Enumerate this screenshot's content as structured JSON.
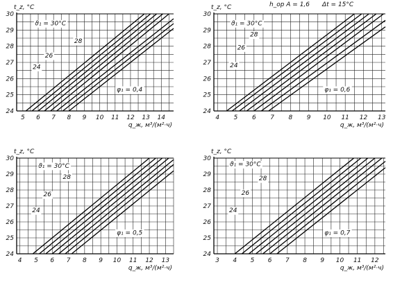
{
  "header": {
    "param_left": "h_op A = 1,6",
    "param_right": "Δt = 15°C"
  },
  "chart_data": [
    {
      "type": "line",
      "ylabel": "t_z, °C",
      "xlabel": "q_ж, м³/(м²·ч)",
      "xlim": [
        4.6,
        14.8
      ],
      "ylim": [
        24,
        30
      ],
      "xticks": [
        "5",
        "6",
        "7",
        "8",
        "9",
        "10",
        "11",
        "12",
        "13",
        "14"
      ],
      "yticks": [
        "24",
        "25",
        "26",
        "27",
        "28",
        "29",
        "30"
      ],
      "phi_label": "φ₁ = 0,4",
      "grid": true,
      "series": [
        {
          "name": "ϑ₁ = 30°C",
          "x": [
            5.2,
            12.9
          ],
          "y": [
            24,
            30
          ]
        },
        {
          "x": [
            5.6,
            13.3
          ],
          "y": [
            24,
            30
          ]
        },
        {
          "name": "28",
          "x": [
            6.0,
            13.7
          ],
          "y": [
            24,
            30
          ]
        },
        {
          "x": [
            6.4,
            14.1
          ],
          "y": [
            24,
            30
          ]
        },
        {
          "name": "26",
          "x": [
            6.8,
            14.5
          ],
          "y": [
            24,
            30
          ]
        },
        {
          "x": [
            7.2,
            14.8
          ],
          "y": [
            24,
            29.7
          ]
        },
        {
          "name": "24",
          "x": [
            7.6,
            14.8
          ],
          "y": [
            24,
            29.4
          ]
        },
        {
          "x": [
            8.0,
            14.8
          ],
          "y": [
            24,
            29.1
          ]
        }
      ],
      "labels": [
        {
          "text": "ϑ₁ = 30°C",
          "x": 6.8,
          "y": 29.3
        },
        {
          "text": "28",
          "x": 8.6,
          "y": 28.2
        },
        {
          "text": "26",
          "x": 6.7,
          "y": 27.3
        },
        {
          "text": "24",
          "x": 5.9,
          "y": 26.6
        }
      ]
    },
    {
      "type": "line",
      "ylabel": "t_z, °C",
      "xlabel": "q_ж, м³/(м²·ч)",
      "xlim": [
        3.8,
        13.2
      ],
      "ylim": [
        24,
        30
      ],
      "xticks": [
        "4",
        "5",
        "6",
        "7",
        "8",
        "9",
        "10",
        "11",
        "12",
        "13"
      ],
      "yticks": [
        "24",
        "25",
        "26",
        "27",
        "28",
        "29",
        "30"
      ],
      "phi_label": "φ₁ = 0,6",
      "grid": true,
      "series": [
        {
          "name": "ϑ₁ = 30°C",
          "x": [
            4.5,
            11.5
          ],
          "y": [
            24,
            30
          ]
        },
        {
          "x": [
            4.8,
            11.9
          ],
          "y": [
            24,
            30
          ]
        },
        {
          "name": "28",
          "x": [
            5.2,
            12.3
          ],
          "y": [
            24,
            30
          ]
        },
        {
          "x": [
            5.6,
            12.7
          ],
          "y": [
            24,
            30
          ]
        },
        {
          "name": "26",
          "x": [
            6.0,
            13.1
          ],
          "y": [
            24,
            30
          ]
        },
        {
          "x": [
            6.4,
            13.2
          ],
          "y": [
            24,
            29.6
          ]
        },
        {
          "name": "24",
          "x": [
            6.8,
            13.2
          ],
          "y": [
            24,
            29.2
          ]
        }
      ],
      "labels": [
        {
          "text": "ϑ₁ = 30°C",
          "x": 5.6,
          "y": 29.3
        },
        {
          "text": "28",
          "x": 6.0,
          "y": 28.6
        },
        {
          "text": "26",
          "x": 5.3,
          "y": 27.8
        },
        {
          "text": "24",
          "x": 4.9,
          "y": 26.7
        }
      ]
    },
    {
      "type": "line",
      "ylabel": "t_z, °C",
      "xlabel": "q_ж, м³/(м²·ч)",
      "xlim": [
        3.8,
        13.5
      ],
      "ylim": [
        24,
        30
      ],
      "xticks": [
        "4",
        "5",
        "6",
        "7",
        "8",
        "9",
        "10",
        "11",
        "12",
        "13"
      ],
      "yticks": [
        "24",
        "25",
        "26",
        "27",
        "28",
        "29",
        "30"
      ],
      "phi_label": "φ₁ = 0,5",
      "grid": true,
      "series": [
        {
          "name": "ϑ₁ = 30°C",
          "x": [
            4.8,
            12.0
          ],
          "y": [
            24,
            30
          ]
        },
        {
          "x": [
            5.2,
            12.4
          ],
          "y": [
            24,
            30
          ]
        },
        {
          "name": "28",
          "x": [
            5.6,
            12.8
          ],
          "y": [
            24,
            30
          ]
        },
        {
          "x": [
            6.0,
            13.2
          ],
          "y": [
            24,
            30
          ]
        },
        {
          "name": "26",
          "x": [
            6.4,
            13.5
          ],
          "y": [
            24,
            29.9
          ]
        },
        {
          "x": [
            6.8,
            13.5
          ],
          "y": [
            24,
            29.6
          ]
        },
        {
          "name": "24",
          "x": [
            7.2,
            13.5
          ],
          "y": [
            24,
            29.2
          ]
        }
      ],
      "labels": [
        {
          "text": "ϑ₁ = 30°C",
          "x": 6.1,
          "y": 29.4
        },
        {
          "text": "28",
          "x": 6.9,
          "y": 28.7
        },
        {
          "text": "26",
          "x": 5.7,
          "y": 27.6
        },
        {
          "text": "24",
          "x": 5.0,
          "y": 26.6
        }
      ]
    },
    {
      "type": "line",
      "ylabel": "t_z, °C",
      "xlabel": "q_ж, м³/(м²·ч)",
      "xlim": [
        2.8,
        12.6
      ],
      "ylim": [
        24,
        30
      ],
      "xticks": [
        "3",
        "4",
        "5",
        "6",
        "7",
        "8",
        "9",
        "10",
        "11",
        "12"
      ],
      "yticks": [
        "24",
        "25",
        "26",
        "27",
        "28",
        "29",
        "30"
      ],
      "phi_label": "φ₁ = 0,7",
      "grid": true,
      "series": [
        {
          "name": "ϑ₁ = 30°C",
          "x": [
            4.0,
            10.8
          ],
          "y": [
            24,
            30
          ]
        },
        {
          "x": [
            4.4,
            11.2
          ],
          "y": [
            24,
            30
          ]
        },
        {
          "name": "28",
          "x": [
            4.8,
            11.6
          ],
          "y": [
            24,
            30
          ]
        },
        {
          "x": [
            5.2,
            12.0
          ],
          "y": [
            24,
            30
          ]
        },
        {
          "name": "26",
          "x": [
            5.6,
            12.4
          ],
          "y": [
            24,
            30
          ]
        },
        {
          "x": [
            6.0,
            12.6
          ],
          "y": [
            24,
            29.8
          ]
        },
        {
          "name": "24",
          "x": [
            6.4,
            12.6
          ],
          "y": [
            24,
            29.4
          ]
        }
      ],
      "labels": [
        {
          "text": "ϑ₁ = 30°C",
          "x": 4.6,
          "y": 29.5
        },
        {
          "text": "28",
          "x": 5.6,
          "y": 28.6
        },
        {
          "text": "26",
          "x": 4.6,
          "y": 27.7
        },
        {
          "text": "24",
          "x": 3.9,
          "y": 26.6
        }
      ]
    }
  ]
}
